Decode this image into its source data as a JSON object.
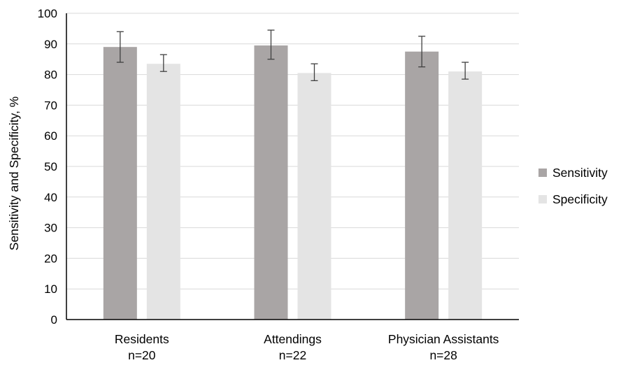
{
  "chart_data": {
    "type": "bar",
    "title": "",
    "xlabel": "",
    "ylabel": "Sensitivity and Specificity, %",
    "ylim": [
      0,
      100
    ],
    "yticks": [
      0,
      10,
      20,
      30,
      40,
      50,
      60,
      70,
      80,
      90,
      100
    ],
    "grid": true,
    "legend_position": "right",
    "categories": [
      {
        "name": "Residents",
        "n": "n=20"
      },
      {
        "name": "Attendings",
        "n": "n=22"
      },
      {
        "name": "Physician Assistants",
        "n": "n=28"
      }
    ],
    "series": [
      {
        "name": "Sensitivity",
        "color": "#a9a5a5",
        "values": [
          89,
          89.5,
          87.5
        ],
        "error_low": [
          84,
          85,
          82.5
        ],
        "error_high": [
          94,
          94.5,
          92.5
        ]
      },
      {
        "name": "Specificity",
        "color": "#e4e4e4",
        "values": [
          83.5,
          80.5,
          81
        ],
        "error_low": [
          81,
          78,
          78.5
        ],
        "error_high": [
          86.5,
          83.5,
          84
        ]
      }
    ]
  }
}
